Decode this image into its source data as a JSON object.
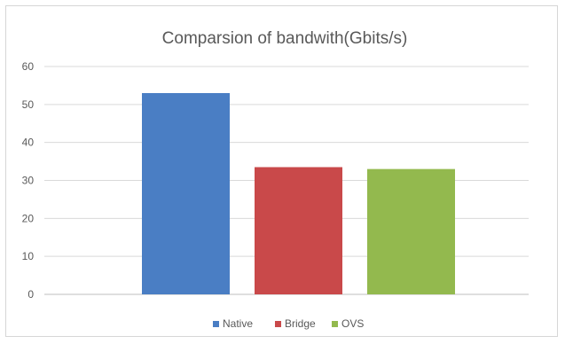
{
  "chart_data": {
    "type": "bar",
    "title": "Comparsion of bandwith(Gbits/s)",
    "xlabel": "",
    "ylabel": "",
    "categories": [
      "Native",
      "Bridge",
      "OVS"
    ],
    "values": [
      53,
      33.5,
      33
    ],
    "colors": [
      "#4a7ec4",
      "#c9494a",
      "#93b94e"
    ],
    "ylim": [
      0,
      60
    ],
    "yticks": [
      0,
      10,
      20,
      30,
      40,
      50,
      60
    ],
    "grid": true,
    "legend": {
      "position": "bottom",
      "items": [
        {
          "label": "Native",
          "color": "#4a7ec4"
        },
        {
          "label": "Bridge",
          "color": "#c9494a"
        },
        {
          "label": "OVS",
          "color": "#93b94e"
        }
      ]
    }
  }
}
